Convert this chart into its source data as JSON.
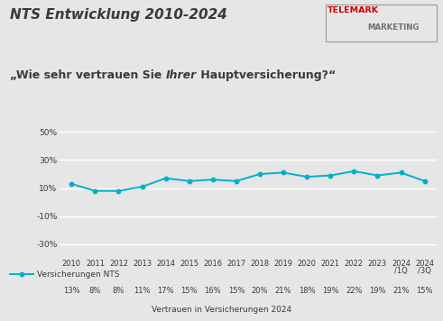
{
  "title_main": "NTS Entwicklung 2010-2024",
  "subtitle_prefix": "„Wie sehr vertrauen Sie ",
  "subtitle_italic": "Ihrer",
  "subtitle_suffix": " Hauptversicherung?“",
  "footer": "Vertrauen in Versicherungen 2024",
  "x_labels": [
    "2010",
    "2011",
    "2012",
    "2013",
    "2014",
    "2015",
    "2016",
    "2017",
    "2018",
    "2019",
    "2020",
    "2021",
    "2022",
    "2023",
    "2024\n/1Q",
    "2024\n/3Q"
  ],
  "values": [
    13,
    8,
    8,
    11,
    17,
    15,
    16,
    15,
    20,
    21,
    18,
    19,
    22,
    19,
    21,
    15
  ],
  "data_labels": [
    "13%",
    "8%",
    "8%",
    "11%",
    "17%",
    "15%",
    "16%",
    "15%",
    "20%",
    "21%",
    "18%",
    "19%",
    "22%",
    "19%",
    "21%",
    "15%"
  ],
  "y_ticks": [
    -30,
    -10,
    10,
    30,
    50
  ],
  "y_ticklabels": [
    "-30%",
    "-10%",
    "10%",
    "30%",
    "50%"
  ],
  "ylim": [
    -40,
    57
  ],
  "line_color": "#00b0c8",
  "marker_color": "#00b0c8",
  "bg_color": "#e6e6e6",
  "plot_bg_color": "#e6e6e6",
  "grid_color": "#ffffff",
  "title_color": "#3a3a3a",
  "text_color": "#3a3a3a",
  "telemark_red": "#cc0000",
  "telemark_gray": "#707070"
}
